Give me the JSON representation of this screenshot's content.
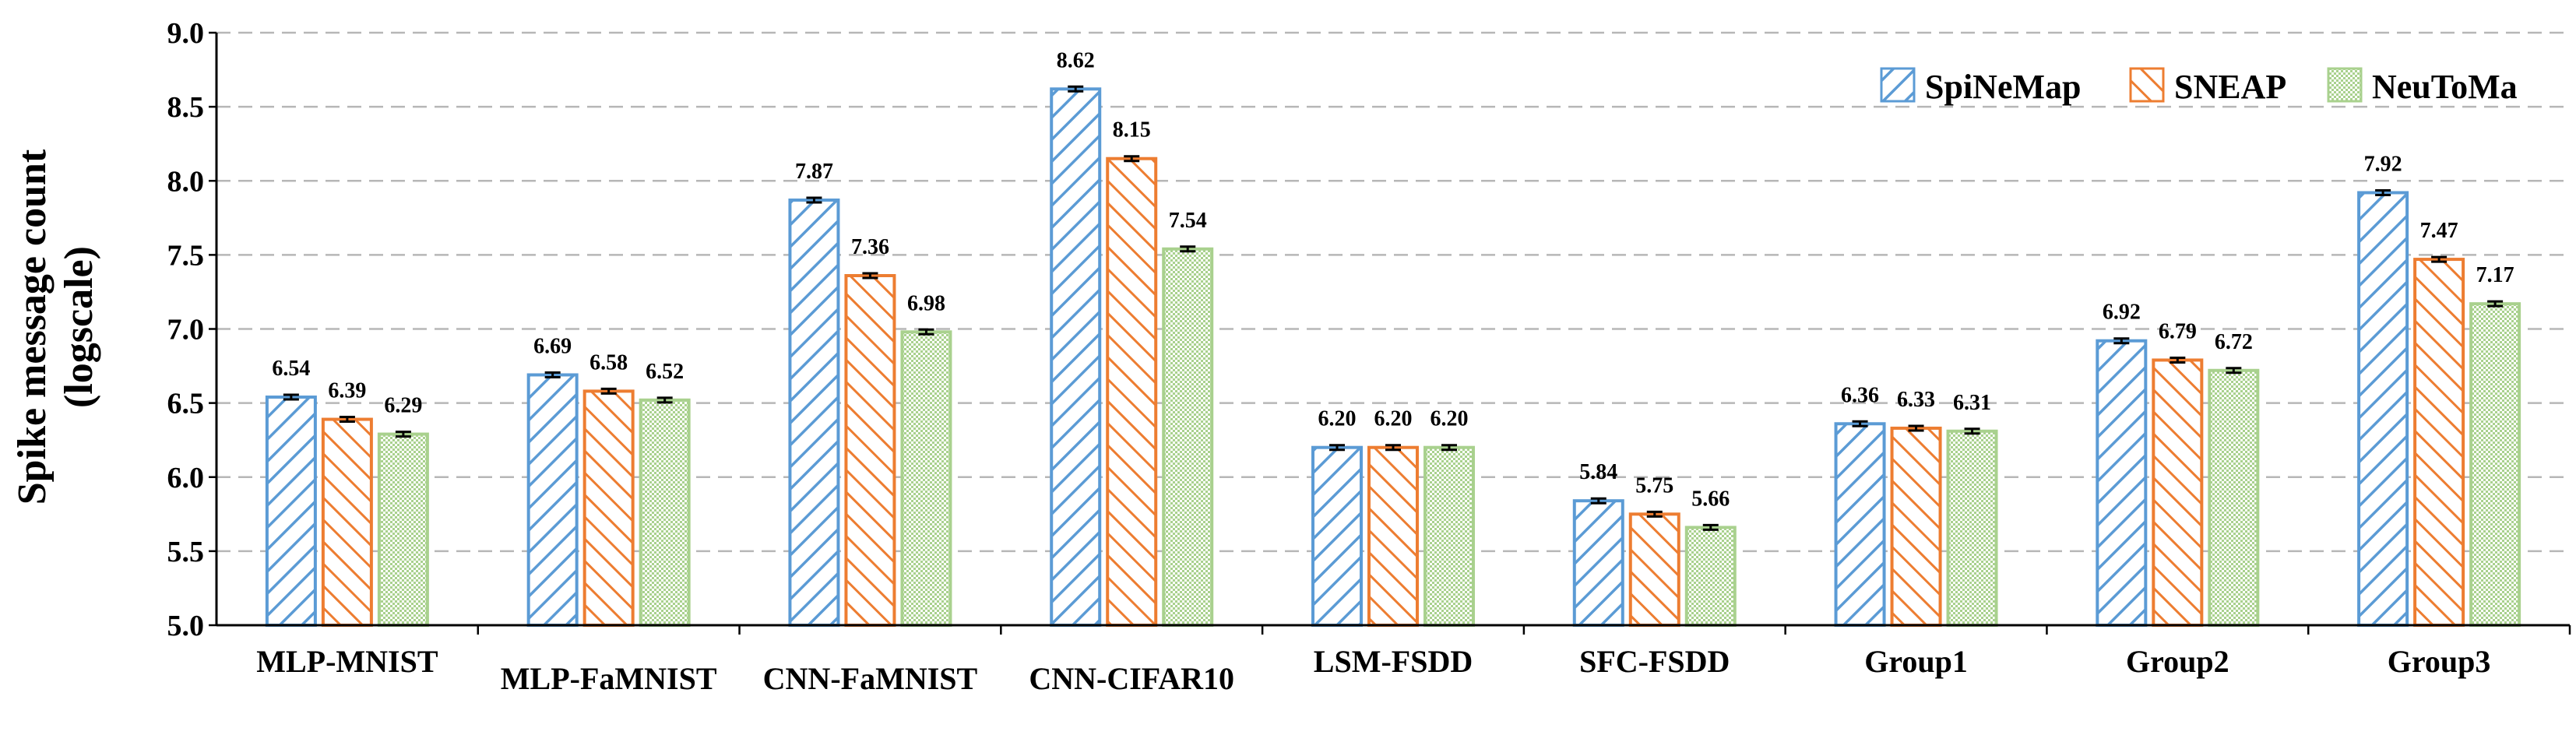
{
  "chart_data": {
    "type": "bar",
    "title": "",
    "xlabel": "",
    "ylabel_lines": [
      "Spike message count",
      "(logscale)"
    ],
    "ylim": [
      5.0,
      9.0
    ],
    "yticks": [
      "5.0",
      "5.5",
      "6.0",
      "6.5",
      "7.0",
      "7.5",
      "8.0",
      "8.5",
      "9.0"
    ],
    "grid": true,
    "legend_position": "top-right",
    "categories": [
      "MLP-MNIST",
      "MLP-FaMNIST",
      "CNN-FaMNIST",
      "CNN-CIFAR10",
      "LSM-FSDD",
      "SFC-FSDD",
      "Group1",
      "Group2",
      "Group3"
    ],
    "series": [
      {
        "name": "SpiNeMap",
        "color": "#5b9bd5",
        "pattern": "diagonal-backslash",
        "values": [
          6.54,
          6.69,
          7.87,
          8.62,
          6.2,
          5.84,
          6.36,
          6.92,
          7.92
        ],
        "labels": [
          "6.54",
          "6.69",
          "7.87",
          "8.62",
          "6.20",
          "5.84",
          "6.36",
          "6.92",
          "7.92"
        ]
      },
      {
        "name": "SNEAP",
        "color": "#ed7d31",
        "pattern": "diagonal-slash",
        "values": [
          6.39,
          6.58,
          7.36,
          8.15,
          6.2,
          5.75,
          6.33,
          6.79,
          7.47
        ],
        "labels": [
          "6.39",
          "6.58",
          "7.36",
          "8.15",
          "6.20",
          "5.75",
          "6.33",
          "6.79",
          "7.47"
        ]
      },
      {
        "name": "NeuToMa",
        "color": "#a9d18e",
        "pattern": "checker",
        "values": [
          6.29,
          6.52,
          6.98,
          7.54,
          6.2,
          5.66,
          6.31,
          6.72,
          7.17
        ],
        "labels": [
          "6.29",
          "6.52",
          "6.98",
          "7.54",
          "6.20",
          "5.66",
          "6.31",
          "6.72",
          "7.17"
        ]
      }
    ]
  }
}
